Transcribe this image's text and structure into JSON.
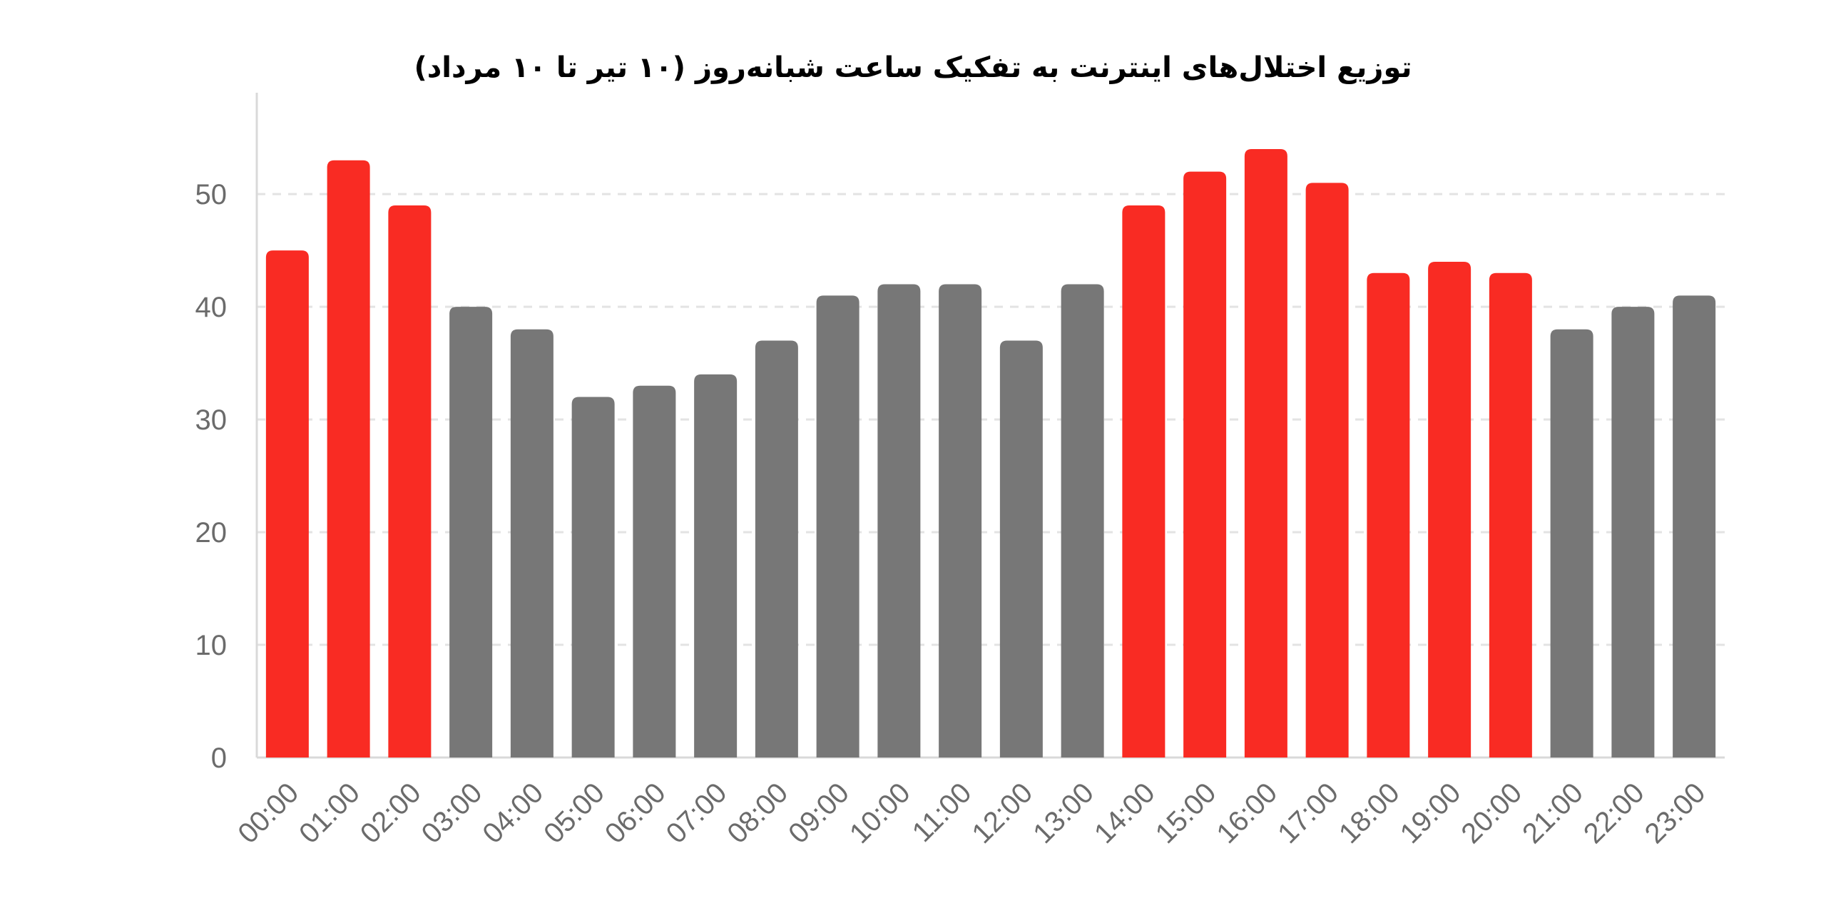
{
  "chart_data": {
    "type": "bar",
    "title": "توزیع اختلال‌های اینترنت به تفکیک ساعت شبانه‌روز  (۱۰ تیر تا ۱۰ مرداد)",
    "xlabel": "",
    "ylabel": "",
    "ylim": [
      0,
      59
    ],
    "yticks": [
      0,
      10,
      20,
      30,
      40,
      50
    ],
    "grid": true,
    "categories": [
      "00:00",
      "01:00",
      "02:00",
      "03:00",
      "04:00",
      "05:00",
      "06:00",
      "07:00",
      "08:00",
      "09:00",
      "10:00",
      "11:00",
      "12:00",
      "13:00",
      "14:00",
      "15:00",
      "16:00",
      "17:00",
      "18:00",
      "19:00",
      "20:00",
      "21:00",
      "22:00",
      "23:00"
    ],
    "values": [
      45,
      53,
      49,
      40,
      38,
      32,
      33,
      34,
      37,
      41,
      42,
      42,
      37,
      42,
      49,
      52,
      54,
      51,
      43,
      44,
      43,
      38,
      40,
      41
    ],
    "highlighted": [
      true,
      true,
      true,
      false,
      false,
      false,
      false,
      false,
      false,
      false,
      false,
      false,
      false,
      false,
      true,
      true,
      true,
      true,
      true,
      true,
      true,
      false,
      false,
      false
    ],
    "colors": {
      "highlight": "#f92b23",
      "normal": "#777777",
      "grid": "#e3e3e3",
      "axis": "#d9d9d9",
      "tick_text": "#6b6b6b"
    }
  }
}
